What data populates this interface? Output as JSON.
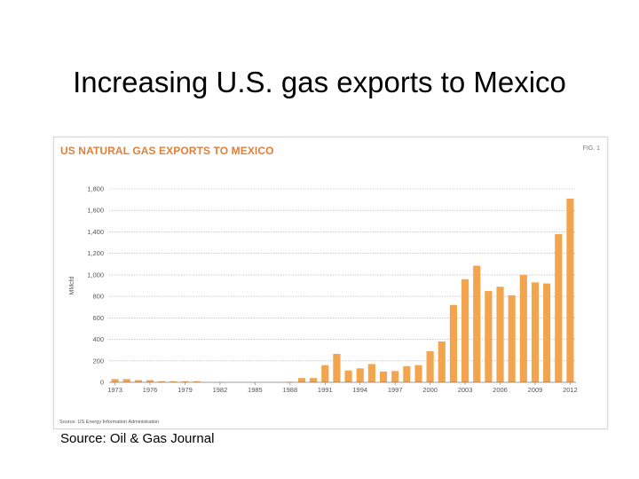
{
  "slide": {
    "title": "Increasing U.S. gas exports to Mexico",
    "source": "Source: Oil & Gas Journal"
  },
  "figure": {
    "title": "US NATURAL GAS EXPORTS TO MEXICO",
    "label": "FIG. 1",
    "source": "Source: US Energy Information Administration"
  },
  "colors": {
    "bar": "#f2a54e",
    "title": "#e0803a",
    "grid": "#9a9a9a",
    "axis": "#555555"
  },
  "chart_data": {
    "type": "bar",
    "title": "US NATURAL GAS EXPORTS TO MEXICO",
    "xlabel": "",
    "ylabel": "MMcfd",
    "ylim": [
      0,
      1800
    ],
    "yticks": [
      0,
      200,
      400,
      600,
      800,
      1000,
      1200,
      1400,
      1600,
      1800
    ],
    "ytick_labels": [
      "0",
      "200",
      "400",
      "600",
      "800",
      "1,000",
      "1,200",
      "1,400",
      "1,600",
      "1,800"
    ],
    "xtick_labels": [
      "1973",
      "1976",
      "1979",
      "1982",
      "1985",
      "1988",
      "1991",
      "1994",
      "1997",
      "2000",
      "2003",
      "2006",
      "2009",
      "2012"
    ],
    "grid": true,
    "categories": [
      "1973",
      "1974",
      "1975",
      "1976",
      "1977",
      "1978",
      "1979",
      "1980",
      "1981",
      "1982",
      "1983",
      "1984",
      "1985",
      "1986",
      "1987",
      "1988",
      "1989",
      "1990",
      "1991",
      "1992",
      "1993",
      "1994",
      "1995",
      "1996",
      "1997",
      "1998",
      "1999",
      "2000",
      "2001",
      "2002",
      "2003",
      "2004",
      "2005",
      "2006",
      "2007",
      "2008",
      "2009",
      "2010",
      "2011",
      "2012"
    ],
    "values": [
      30,
      30,
      20,
      20,
      10,
      10,
      10,
      10,
      0,
      0,
      0,
      0,
      0,
      0,
      0,
      5,
      40,
      40,
      160,
      265,
      110,
      130,
      170,
      100,
      105,
      150,
      160,
      290,
      380,
      720,
      960,
      1085,
      850,
      890,
      810,
      1000,
      930,
      920,
      1380,
      1710
    ]
  }
}
